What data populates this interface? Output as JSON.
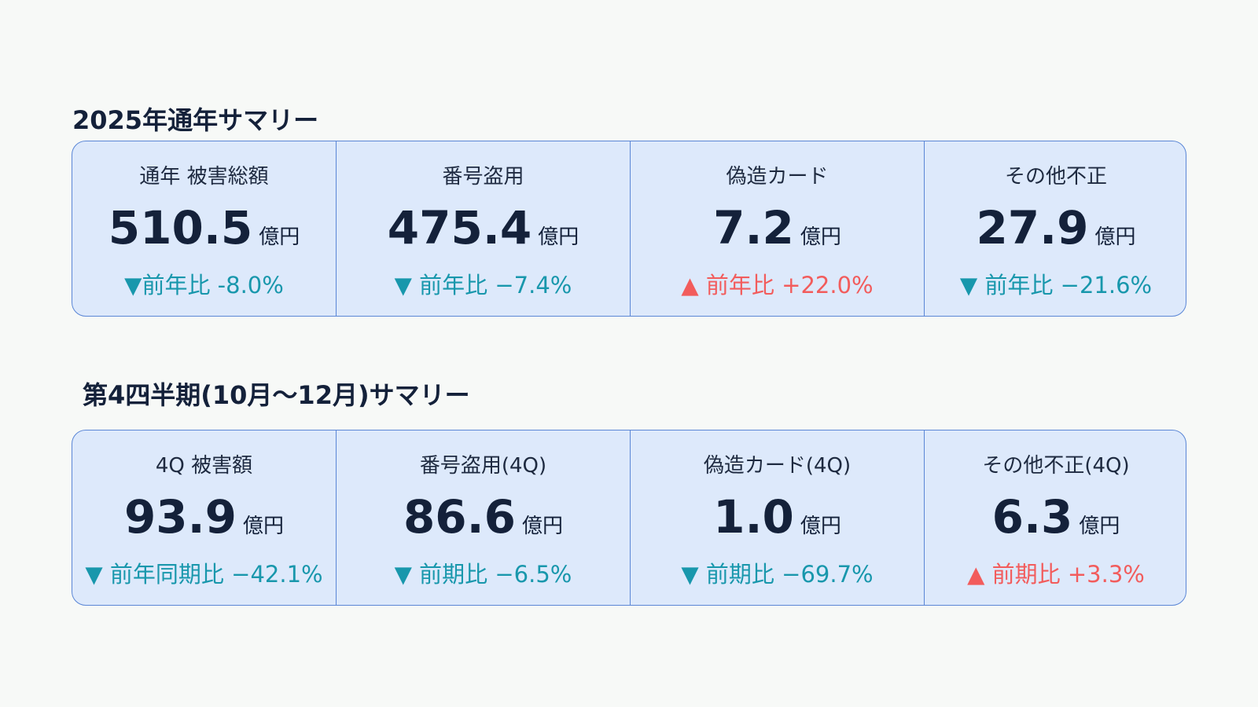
{
  "sections": [
    {
      "title": "2025年通年サマリー",
      "cards": [
        {
          "label": "通年 被害総額",
          "value": "510.5",
          "unit": "億円",
          "change": "▼前年比 -8.0%",
          "color": "#1897ac"
        },
        {
          "label": "番号盗用",
          "value": "475.4",
          "unit": "億円",
          "change": "▼ 前年比 −7.4%",
          "color": "#1897ac"
        },
        {
          "label": "偽造カード",
          "value": "7.2",
          "unit": "億円",
          "change": "▲ 前年比 +22.0%",
          "color": "#f25c5c"
        },
        {
          "label": "その他不正",
          "value": "27.9",
          "unit": "億円",
          "change": "▼ 前年比 −21.6%",
          "color": "#1897ac"
        }
      ]
    },
    {
      "title": "第4四半期(10月～12月)サマリー",
      "cards": [
        {
          "label": "4Q 被害額",
          "value": "93.9",
          "unit": "億円",
          "change": "▼ 前年同期比 −42.1%",
          "color": "#1897ac"
        },
        {
          "label": "番号盗用(4Q)",
          "value": "86.6",
          "unit": "億円",
          "change": "▼ 前期比 −6.5%",
          "color": "#1897ac"
        },
        {
          "label": "偽造カード(4Q)",
          "value": "1.0",
          "unit": "億円",
          "change": "▼ 前期比 −69.7%",
          "color": "#1897ac"
        },
        {
          "label": "その他不正(4Q)",
          "value": "6.3",
          "unit": "億円",
          "change": "▲ 前期比 +3.3%",
          "color": "#f25c5c"
        }
      ]
    }
  ]
}
